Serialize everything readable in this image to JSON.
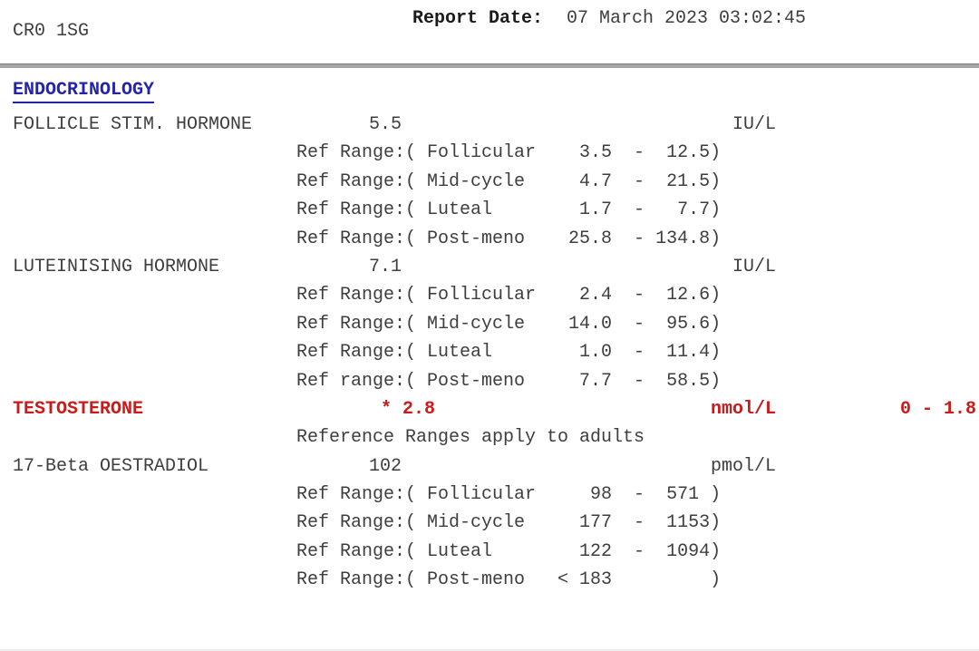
{
  "header": {
    "patient_code": "CR0 1SG",
    "report_date_label": "Report Date:",
    "report_date_value": "07 March 2023 03:02:45"
  },
  "section": {
    "title": "ENDOCRINOLOGY"
  },
  "colors": {
    "link_blue": "#2323ad",
    "alert_red": "#cc1a1a",
    "divider_gray": "#a6a6a6",
    "body_text": "#3e3e3e"
  },
  "tests": [
    {
      "name": "FOLLICLE STIM. HORMONE",
      "value": "5.5",
      "unit": "IU/L",
      "ranges": [
        "Ref Range:( Follicular    3.5  -  12.5)",
        "Ref Range:( Mid-cycle     4.7  -  21.5)",
        "Ref Range:( Luteal        1.7  -   7.7)",
        "Ref Range:( Post-meno    25.8  - 134.8)"
      ]
    },
    {
      "name": "LUTEINISING HORMONE",
      "value": "7.1",
      "unit": "IU/L",
      "ranges": [
        "Ref Range:( Follicular    2.4  -  12.6)",
        "Ref Range:( Mid-cycle    14.0  -  95.6)",
        "Ref Range:( Luteal        1.0  -  11.4)",
        "Ref range:( Post-meno     7.7  -  58.5)"
      ]
    },
    {
      "name": "TESTOSTERONE",
      "value": "* 2.8",
      "unit": "nmol/L",
      "flag_range": "0 - 1.8",
      "note": "Reference Ranges apply to adults"
    },
    {
      "name": "17-Beta OESTRADIOL",
      "value": "102",
      "unit": "pmol/L",
      "ranges": [
        "Ref Range:( Follicular     98  -  571 )",
        "Ref Range:( Mid-cycle     177  -  1153)",
        "Ref Range:( Luteal        122  -  1094)",
        "Ref Range:( Post-meno   < 183         )"
      ]
    }
  ]
}
